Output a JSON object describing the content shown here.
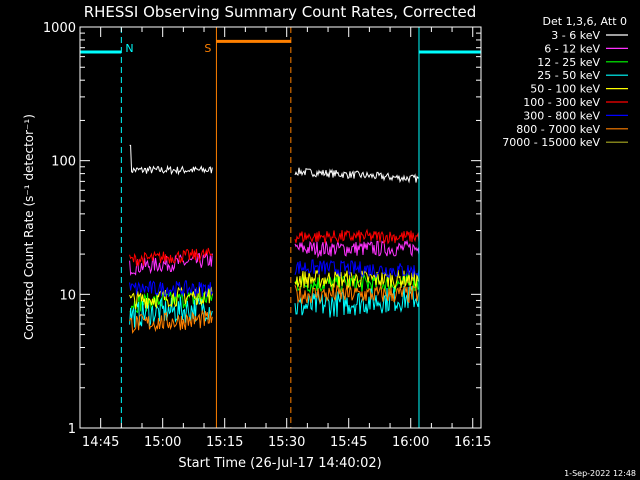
{
  "chart_data": {
    "type": "line",
    "title": "RHESSI Observing Summary Count Rates, Corrected",
    "xlabel": "Start Time (26-Jul-17 14:40:02)",
    "ylabel": "Corrected Count Rate (s⁻¹ detector⁻¹)",
    "yscale": "log",
    "ylim": [
      1,
      1000
    ],
    "xlim_minutes": [
      0,
      97
    ],
    "xtick_labels": [
      {
        "label": "14:45",
        "minute": 5
      },
      {
        "label": "15:00",
        "minute": 20
      },
      {
        "label": "15:15",
        "minute": 35
      },
      {
        "label": "15:30",
        "minute": 50
      },
      {
        "label": "15:45",
        "minute": 65
      },
      {
        "label": "16:00",
        "minute": 80
      },
      {
        "label": "16:15",
        "minute": 95
      }
    ],
    "ytick_labels": [
      {
        "label": "1",
        "value": 1
      },
      {
        "label": "10",
        "value": 10
      },
      {
        "label": "100",
        "value": 100
      },
      {
        "label": "1000",
        "value": 1000
      }
    ],
    "legend": {
      "header": "Det 1,3,6, Att 0",
      "entries": [
        {
          "label": "3 - 6 keV",
          "color": "#ffffff"
        },
        {
          "label": "6 - 12 keV",
          "color": "#ff33ff"
        },
        {
          "label": "12 - 25 keV",
          "color": "#00ff00"
        },
        {
          "label": "25 - 50 keV",
          "color": "#00ffff"
        },
        {
          "label": "50 - 100 keV",
          "color": "#ffff00"
        },
        {
          "label": "100 - 300 keV",
          "color": "#ff0000"
        },
        {
          "label": "300 - 800 keV",
          "color": "#0000ff"
        },
        {
          "label": "800 - 7000 keV",
          "color": "#ff8000"
        },
        {
          "label": "7000 - 15000 keV",
          "color": "#aaaa22"
        }
      ]
    },
    "segments": [
      [
        12,
        32
      ],
      [
        52,
        82
      ]
    ],
    "series": [
      {
        "name": "3 - 6 keV",
        "color": "#ffffff",
        "levels": [
          [
            85,
            85
          ],
          [
            83,
            73
          ]
        ],
        "noise": 0.03,
        "spike": 130
      },
      {
        "name": "6 - 12 keV",
        "color": "#ff33ff",
        "levels": [
          [
            16,
            18
          ],
          [
            22,
            22
          ]
        ],
        "noise": 0.06
      },
      {
        "name": "12 - 25 keV",
        "color": "#00ff00",
        "levels": [
          [
            8.5,
            9.5
          ],
          [
            12,
            12
          ]
        ],
        "noise": 0.07
      },
      {
        "name": "25 - 50 keV",
        "color": "#00ffff",
        "levels": [
          [
            7,
            8
          ],
          [
            8,
            9.5
          ]
        ],
        "noise": 0.1
      },
      {
        "name": "50 - 100 keV",
        "color": "#ffff00",
        "levels": [
          [
            9,
            10
          ],
          [
            13,
            13
          ]
        ],
        "noise": 0.07
      },
      {
        "name": "100 - 300 keV",
        "color": "#ff0000",
        "levels": [
          [
            18,
            20
          ],
          [
            27,
            27
          ]
        ],
        "noise": 0.05
      },
      {
        "name": "300 - 800 keV",
        "color": "#0000ff",
        "levels": [
          [
            11,
            11
          ],
          [
            16,
            15
          ]
        ],
        "noise": 0.06
      },
      {
        "name": "800 - 7000 keV",
        "color": "#ff8000",
        "levels": [
          [
            6,
            6.5
          ],
          [
            10,
            10
          ]
        ],
        "noise": 0.07
      }
    ],
    "flags": [
      {
        "label": "N",
        "color": "#00ffff",
        "level": 650,
        "spans": [
          [
            0,
            10
          ],
          [
            82,
            97
          ]
        ],
        "dashed_at": [
          10,
          97
        ],
        "solid_at": [
          0,
          82
        ]
      },
      {
        "label": "S",
        "color": "#ff8000",
        "level": 780,
        "spans": [
          [
            33,
            51
          ]
        ],
        "dashed_at": [
          51
        ],
        "solid_at": [
          33
        ]
      }
    ],
    "footer_date": "1-Sep-2022 12:48"
  }
}
